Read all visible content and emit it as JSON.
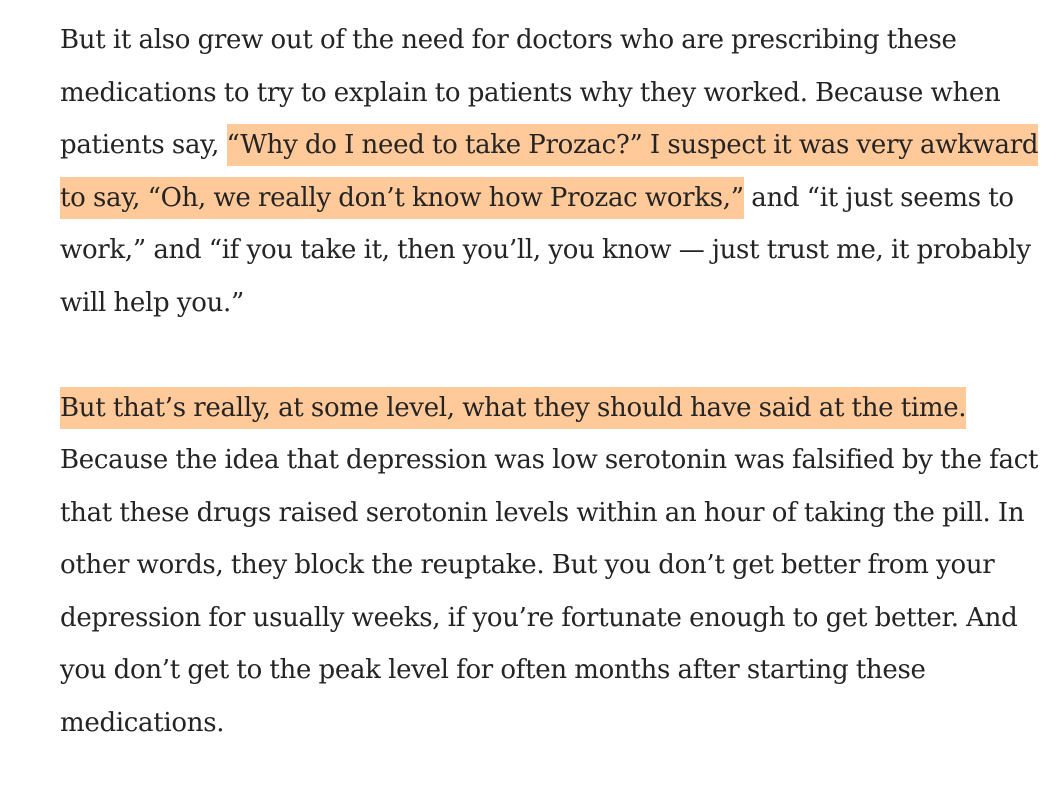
{
  "article": {
    "paragraphs": [
      {
        "segments": [
          {
            "text": "But it also grew out of the need for doctors who are prescribing these medications to try to explain to patients why they worked. Because when patients say, ",
            "highlighted": false
          },
          {
            "text": "“Why do I need to take Prozac?” I suspect it was very awkward to say, “Oh, we really don’t know how Prozac works,”",
            "highlighted": true
          },
          {
            "text": " and “it just seems to work,” and “if you take it, then you’ll, you know — just trust me, it probably will help you.”",
            "highlighted": false
          }
        ]
      },
      {
        "segments": [
          {
            "text": "But that’s really, at some level, what they should have said at the time.",
            "highlighted": true
          },
          {
            "text": " Because the idea that depression was low serotonin was falsified by the fact that these drugs raised serotonin levels within an hour of taking the pill. In other words, they block the reuptake. But you don’t get better from your depression for usually weeks, if you’re fortunate enough to get better. And you don’t get to the peak level for often months after starting these medications.",
            "highlighted": false
          }
        ]
      }
    ],
    "highlight_color": "#ffc999",
    "text_color": "#242424"
  }
}
